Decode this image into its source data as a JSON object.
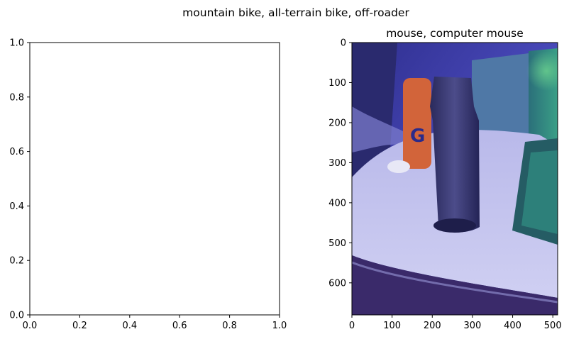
{
  "figure": {
    "suptitle": "mountain bike, all-terrain bike, off-roader"
  },
  "chart_data": [
    {
      "type": "line",
      "title": "",
      "xlabel": "",
      "ylabel": "",
      "xlim": [
        0.0,
        1.0
      ],
      "ylim": [
        0.0,
        1.0
      ],
      "x_ticks": [
        0.0,
        0.2,
        0.4,
        0.6,
        0.8,
        1.0
      ],
      "x_tick_labels": [
        "0.0",
        "0.2",
        "0.4",
        "0.6",
        "0.8",
        "1.0"
      ],
      "y_ticks": [
        0.0,
        0.2,
        0.4,
        0.6,
        0.8,
        1.0
      ],
      "y_tick_labels": [
        "0.0",
        "0.2",
        "0.4",
        "0.6",
        "0.8",
        "1.0"
      ],
      "series": [],
      "grid": false
    },
    {
      "type": "heatmap",
      "title": "mouse, computer mouse",
      "xlabel": "",
      "ylabel": "",
      "xlim": [
        0,
        512
      ],
      "ylim": [
        680,
        0
      ],
      "x_ticks": [
        0,
        100,
        200,
        300,
        400,
        500
      ],
      "x_tick_labels": [
        "0",
        "100",
        "200",
        "300",
        "400",
        "500"
      ],
      "y_ticks": [
        0,
        100,
        200,
        300,
        400,
        500,
        600
      ],
      "y_tick_labels": [
        "0",
        "100",
        "200",
        "300",
        "400",
        "500",
        "600"
      ],
      "image_description_colors": {
        "overlay_low": "#3b3bd6",
        "overlay_high": "#3fbf8f",
        "table_surface": "#c9c9ef"
      },
      "grid": false
    }
  ]
}
